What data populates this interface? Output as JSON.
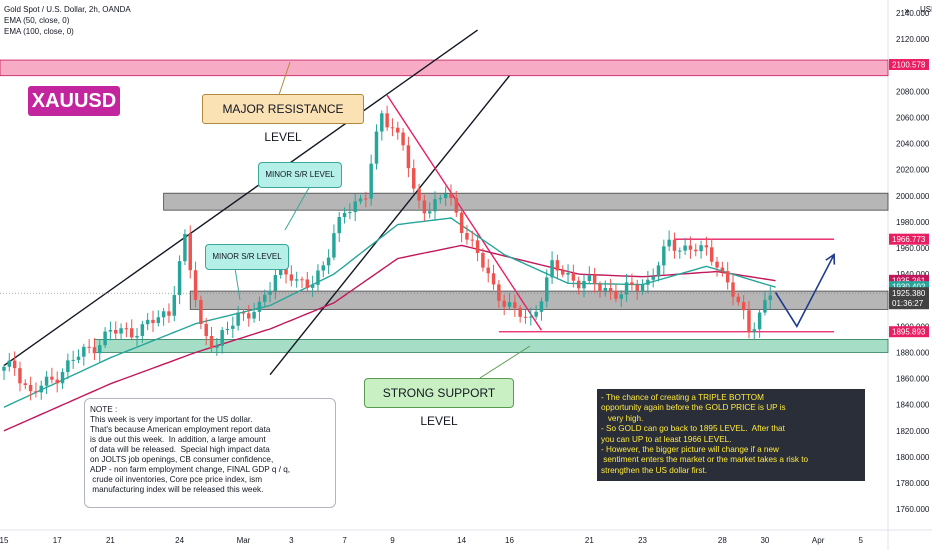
{
  "legend": {
    "symbol_line": "Gold Spot / U.S. Dollar, 2h, OANDA",
    "ema50_label": "EMA (50, close, 0)",
    "ema100_label": "EMA (100, close, 0)"
  },
  "annotations": {
    "ticker": "XAUUSD",
    "major_resistance": "MAJOR RESISTANCE LEVEL",
    "minor_sr_1": "MINOR S/R LEVEL",
    "minor_sr_2": "MINOR S/R LEVEL",
    "strong_support": "STRONG SUPPORT LEVEL",
    "note": "NOTE :\nThis week is very important for the US dollar.\nThat's because American employment report data\nis due out this week.  In addition, a large amount\nof data will be released.  Special high impact data\non JOLTS job openings, CB consumer confidence,\nADP - non farm employment change, FINAL GDP q / q,\n crude oil inventories, Core pce price index, ism\n manufacturing index will be released this week.",
    "analysis": "- The chance of creating a TRIPLE BOTTOM\nopportunity again before the GOLD PRICE is UP is\n   very high.\n- So GOLD can go back to 1895 LEVEL.  After that\nyou can UP to at least 1966 LEVEL.\n- However, the bigger picture will change if a new\n sentiment enters the market or the market takes a risk to\nstrengthen the US dollar first."
  },
  "price_tags": {
    "resistance_tag": "2100.578",
    "level_1966": "1966.773",
    "ema100_tag": "1935.261",
    "ema50_tag": "1930.402",
    "last_price": "1925.380",
    "countdown": "01:36:27",
    "level_1895": "1895.893"
  },
  "colors": {
    "up": "#26a69a",
    "down": "#ef5350",
    "ema50": "#26a69a",
    "ema100": "#c2185b",
    "zone_red": "#e91e63",
    "zone_grey": "#787b86",
    "zone_green": "#4caf8a",
    "projection": "#1e3a8a"
  },
  "chart_data": {
    "type": "candlestick",
    "symbol": "Gold Spot / U.S. Dollar, 2h, OANDA",
    "y_axis": {
      "label": "USD",
      "ylim": [
        1744,
        2150
      ],
      "ticks": [
        1760,
        1780,
        1800,
        1820,
        1840,
        1860,
        1880,
        1900,
        1920,
        1940,
        1960,
        1980,
        2000,
        2020,
        2040,
        2060,
        2080,
        2100,
        2120,
        2140
      ],
      "tick_labels": [
        "1760.000",
        "1780.000",
        "1800.000",
        "1820.000",
        "1840.000",
        "1860.000",
        "1880.000",
        "1900.000",
        "1920.000",
        "1940.000",
        "1960.000",
        "1980.000",
        "2000.000",
        "2020.000",
        "2040.000",
        "2060.000",
        "2080.000",
        "2100.000",
        "2120.000",
        "2140.000"
      ]
    },
    "x_axis": {
      "tick_labels": [
        "15",
        "17",
        "21",
        "24",
        "Mar",
        "3",
        "7",
        "9",
        "14",
        "16",
        "21",
        "23",
        "28",
        "30",
        "Apr",
        "5"
      ],
      "tick_index": [
        0,
        10,
        20,
        33,
        45,
        54,
        64,
        73,
        86,
        95,
        110,
        120,
        135,
        143,
        153,
        161
      ],
      "num_bars": 165
    },
    "key_points": [
      {
        "bar": 0,
        "price": 1866
      },
      {
        "bar": 2,
        "price": 1870
      },
      {
        "bar": 5,
        "price": 1848
      },
      {
        "bar": 8,
        "price": 1856
      },
      {
        "bar": 13,
        "price": 1874
      },
      {
        "bar": 20,
        "price": 1895
      },
      {
        "bar": 26,
        "price": 1898
      },
      {
        "bar": 31,
        "price": 1912
      },
      {
        "bar": 34,
        "price": 1965
      },
      {
        "bar": 37,
        "price": 1900
      },
      {
        "bar": 40,
        "price": 1884
      },
      {
        "bar": 44,
        "price": 1910
      },
      {
        "bar": 48,
        "price": 1912
      },
      {
        "bar": 52,
        "price": 1950
      },
      {
        "bar": 55,
        "price": 1930
      },
      {
        "bar": 58,
        "price": 1935
      },
      {
        "bar": 61,
        "price": 1955
      },
      {
        "bar": 64,
        "price": 1990
      },
      {
        "bar": 68,
        "price": 2000
      },
      {
        "bar": 71,
        "price": 2065
      },
      {
        "bar": 75,
        "price": 2040
      },
      {
        "bar": 77,
        "price": 2000
      },
      {
        "bar": 80,
        "price": 1990
      },
      {
        "bar": 83,
        "price": 2002
      },
      {
        "bar": 87,
        "price": 1970
      },
      {
        "bar": 92,
        "price": 1930
      },
      {
        "bar": 96,
        "price": 1910
      },
      {
        "bar": 99,
        "price": 1905
      },
      {
        "bar": 103,
        "price": 1945
      },
      {
        "bar": 108,
        "price": 1935
      },
      {
        "bar": 112,
        "price": 1930
      },
      {
        "bar": 116,
        "price": 1925
      },
      {
        "bar": 121,
        "price": 1935
      },
      {
        "bar": 125,
        "price": 1962
      },
      {
        "bar": 130,
        "price": 1960
      },
      {
        "bar": 134,
        "price": 1950
      },
      {
        "bar": 137,
        "price": 1925
      },
      {
        "bar": 140,
        "price": 1897
      },
      {
        "bar": 144,
        "price": 1925
      }
    ],
    "ema50": [
      {
        "bar": 0,
        "price": 1838
      },
      {
        "bar": 20,
        "price": 1876
      },
      {
        "bar": 36,
        "price": 1902
      },
      {
        "bar": 50,
        "price": 1916
      },
      {
        "bar": 62,
        "price": 1940
      },
      {
        "bar": 74,
        "price": 1978
      },
      {
        "bar": 84,
        "price": 1983
      },
      {
        "bar": 94,
        "price": 1955
      },
      {
        "bar": 106,
        "price": 1933
      },
      {
        "bar": 120,
        "price": 1932
      },
      {
        "bar": 132,
        "price": 1946
      },
      {
        "bar": 145,
        "price": 1930
      }
    ],
    "ema100": [
      {
        "bar": 0,
        "price": 1820
      },
      {
        "bar": 20,
        "price": 1856
      },
      {
        "bar": 36,
        "price": 1880
      },
      {
        "bar": 50,
        "price": 1898
      },
      {
        "bar": 62,
        "price": 1918
      },
      {
        "bar": 74,
        "price": 1952
      },
      {
        "bar": 86,
        "price": 1962
      },
      {
        "bar": 96,
        "price": 1952
      },
      {
        "bar": 108,
        "price": 1940
      },
      {
        "bar": 120,
        "price": 1938
      },
      {
        "bar": 134,
        "price": 1942
      },
      {
        "bar": 145,
        "price": 1935
      }
    ],
    "zones": [
      {
        "name": "major-resistance-zone",
        "from": 2092,
        "to": 2104,
        "start_bar": 0,
        "end_bar": 165
      },
      {
        "name": "minor-sr-zone-upper",
        "from": 1989,
        "to": 2002,
        "start_bar": 30,
        "end_bar": 165
      },
      {
        "name": "minor-sr-zone-lower",
        "from": 1913,
        "to": 1927,
        "start_bar": 35,
        "end_bar": 165
      },
      {
        "name": "strong-support-zone",
        "from": 1880,
        "to": 1890,
        "start_bar": 17,
        "end_bar": 165
      }
    ],
    "levels": [
      {
        "name": "level-1966",
        "price": 1966.773,
        "start_bar": 126,
        "end_bar": 156
      },
      {
        "name": "level-1895",
        "price": 1895.893,
        "start_bar": 93,
        "end_bar": 156
      }
    ],
    "trendlines": [
      {
        "name": "channel-upper",
        "from": {
          "bar": 0,
          "price": 1870
        },
        "to": {
          "bar": 89,
          "price": 2127
        }
      },
      {
        "name": "channel-lower",
        "from": {
          "bar": 50,
          "price": 1863
        },
        "to": {
          "bar": 95,
          "price": 2092
        }
      },
      {
        "name": "down-trendline",
        "from": {
          "bar": 72,
          "price": 2077
        },
        "to": {
          "bar": 101,
          "price": 1897
        }
      }
    ],
    "projection": [
      {
        "bar": 145,
        "price": 1926
      },
      {
        "bar": 149,
        "price": 1900
      },
      {
        "bar": 156,
        "price": 1955
      }
    ]
  }
}
